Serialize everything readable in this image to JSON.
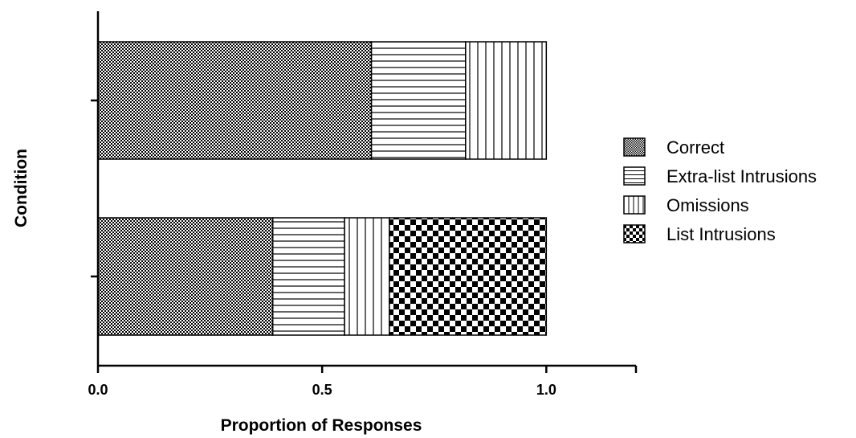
{
  "chart_data": {
    "type": "bar",
    "orientation": "horizontal",
    "stacked": true,
    "title": "",
    "xlabel": "Proportion of Responses",
    "ylabel": "Condition",
    "xlim": [
      0,
      1.2
    ],
    "xticks": [
      "0.0",
      "0.5",
      "1.0"
    ],
    "categories": [
      "",
      ""
    ],
    "grid": false,
    "legend_position": "right",
    "series": [
      {
        "name": "Correct",
        "pattern": "dots",
        "values": [
          0.61,
          0.39
        ]
      },
      {
        "name": "Extra-list Intrusions",
        "pattern": "horizontal-lines",
        "values": [
          0.21,
          0.16
        ]
      },
      {
        "name": "Omissions",
        "pattern": "vertical-lines",
        "values": [
          0.18,
          0.1
        ]
      },
      {
        "name": "List Intrusions",
        "pattern": "checkerboard",
        "values": [
          0,
          0.35
        ]
      }
    ],
    "colors": {
      "ink": "#000000",
      "background": "#ffffff"
    }
  }
}
